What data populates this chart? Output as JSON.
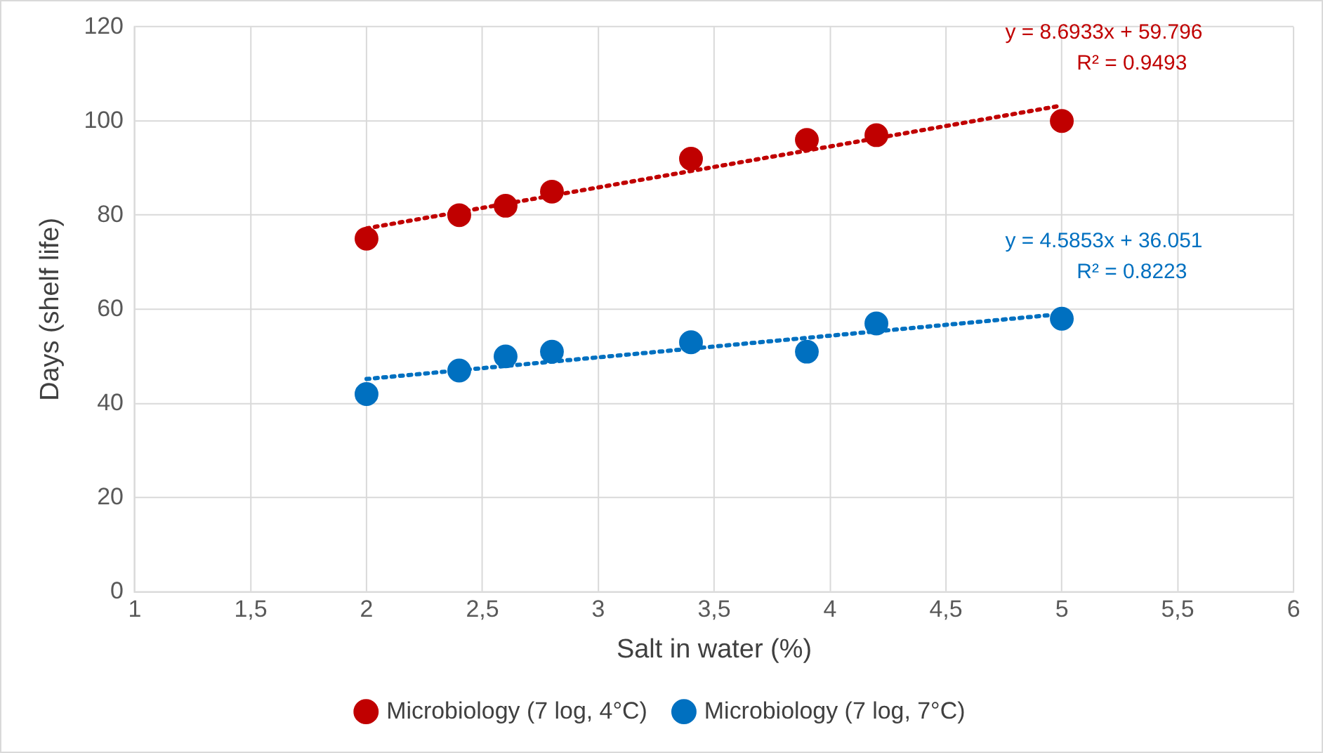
{
  "chart_data": {
    "type": "scatter",
    "xlabel": "Salt in water (%)",
    "ylabel": "Days (shelf life)",
    "xlim": [
      1,
      6
    ],
    "xticks": [
      1,
      {
        "value": 1.5,
        "label": "1,5"
      },
      2,
      {
        "value": 2.5,
        "label": "2,5"
      },
      3,
      {
        "value": 3.5,
        "label": "3,5"
      },
      4,
      {
        "value": 4.5,
        "label": "4,5"
      },
      5,
      {
        "value": 5.5,
        "label": "5,5"
      },
      6
    ],
    "ylim": [
      0,
      120
    ],
    "yticks": [
      0,
      20,
      40,
      60,
      80,
      100,
      120
    ],
    "grid": true,
    "legend": "bottom",
    "x": [
      2,
      2.4,
      2.6,
      2.8,
      3.4,
      3.9,
      4.2,
      5
    ],
    "series": [
      {
        "name": "Microbiology (7 log, 4°C)",
        "color": "#c00000",
        "marker": "circle",
        "values": [
          75,
          80,
          82,
          85,
          92,
          96,
          97,
          100
        ]
      },
      {
        "name": "Microbiology (7 log, 7°C)",
        "color": "#0070c0",
        "marker": "circle",
        "values": [
          42,
          47,
          50,
          51,
          53,
          51,
          57,
          58
        ]
      },
      {
        "type": "line",
        "color": "#c00000",
        "line_style": "dotted",
        "marker": "none",
        "values": [
          77.2,
          null,
          null,
          null,
          null,
          null,
          null,
          103.3
        ]
      },
      {
        "type": "line",
        "color": "#0070c0",
        "line_style": "dotted",
        "marker": "none",
        "values": [
          45.2,
          null,
          null,
          null,
          null,
          null,
          null,
          59.0
        ]
      }
    ],
    "annotations": [
      "y = 8.6933x + 59.796",
      "R² = 0.9493",
      "y = 4.5853x + 36.051",
      "R² = 0.8223"
    ]
  }
}
